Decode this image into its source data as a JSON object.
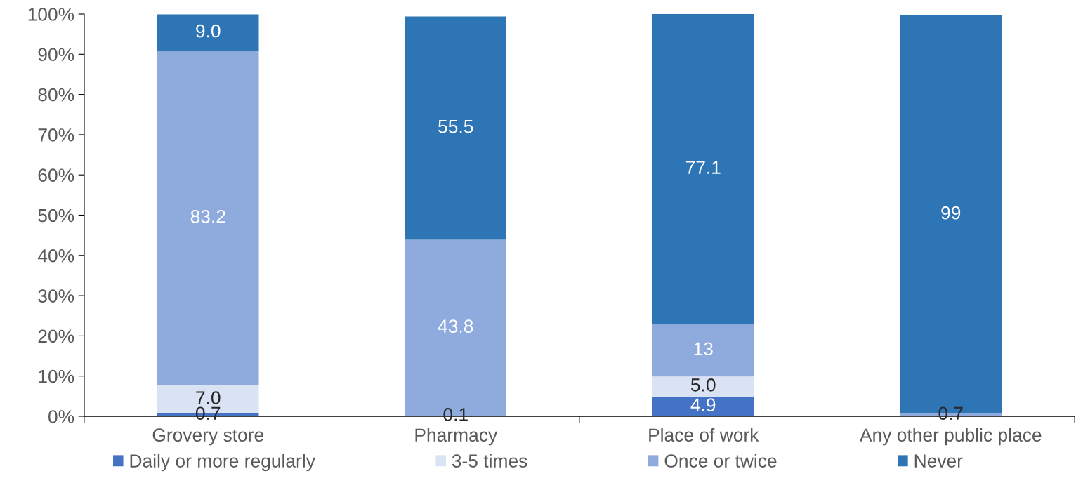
{
  "chart_data": {
    "type": "bar",
    "stacked": true,
    "categories": [
      "Grovery store",
      "Pharmacy",
      "Place of work",
      "Any other public place"
    ],
    "series": [
      {
        "name": "Daily or more regularly",
        "color": "#4472c4",
        "values": [
          0.7,
          0.1,
          4.9,
          null
        ],
        "value_labels": [
          "0.7",
          "0.1",
          "4.9",
          null
        ]
      },
      {
        "name": "3-5 times",
        "color": "#dae3f3",
        "values": [
          7.0,
          null,
          5.0,
          null
        ],
        "value_labels": [
          "7.0",
          null,
          "5.0",
          null
        ]
      },
      {
        "name": "Once or twice",
        "color": "#8faadc",
        "values": [
          83.2,
          43.8,
          13,
          0.7
        ],
        "value_labels": [
          "83.2",
          "43.8",
          "13",
          "0.7"
        ]
      },
      {
        "name": "Never",
        "color": "#2e75b6",
        "values": [
          9.0,
          55.5,
          77.1,
          99
        ],
        "value_labels": [
          "9.0",
          "55.5",
          "77.1",
          "99"
        ]
      }
    ],
    "ylim": [
      0,
      100
    ],
    "yticks": [
      {
        "value": 0,
        "label": "0%"
      },
      {
        "value": 10,
        "label": "10%"
      },
      {
        "value": 20,
        "label": "20%"
      },
      {
        "value": 30,
        "label": "30%"
      },
      {
        "value": 40,
        "label": "40%"
      },
      {
        "value": 50,
        "label": "50%"
      },
      {
        "value": 60,
        "label": "60%"
      },
      {
        "value": 70,
        "label": "70%"
      },
      {
        "value": 80,
        "label": "80%"
      },
      {
        "value": 90,
        "label": "90%"
      },
      {
        "value": 100,
        "label": "100%"
      }
    ],
    "legend": "bottom"
  }
}
